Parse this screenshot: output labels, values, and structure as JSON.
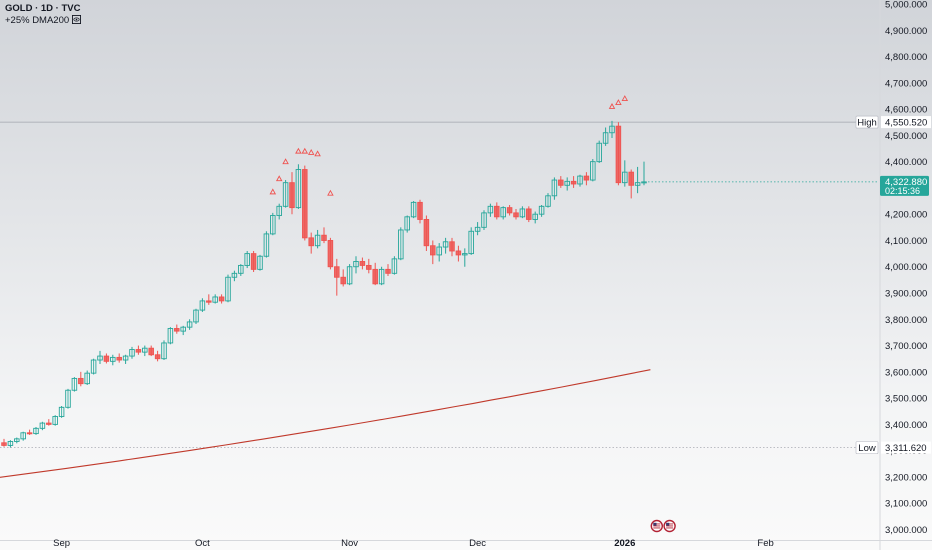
{
  "legend": {
    "title": "GOLD · 1D · TVC",
    "indicator": "+25% DMA200 ",
    "indicator_icon": "eye-icon"
  },
  "colors": {
    "up": "#26a69a",
    "down": "#ef5350",
    "ma_line": "#c0392b",
    "price_tag": "#26a69a",
    "reference_line": "#9598a1"
  },
  "chart_data": {
    "type": "candlestick",
    "title": "GOLD · 1D · TVC",
    "xlabel": "",
    "ylabel": "",
    "ylim": [
      2960,
      5000
    ],
    "y_ticks": [
      "5,000.000",
      "4,900.000",
      "4,800.000",
      "4,700.000",
      "4,600.000",
      "4,500.000",
      "4,400.000",
      "4,300.000",
      "4,200.000",
      "4,100.000",
      "4,000.000",
      "3,900.000",
      "3,800.000",
      "3,700.000",
      "3,600.000",
      "3,500.000",
      "3,400.000",
      "3,300.000",
      "3,200.000",
      "3,100.000",
      "3,000.000"
    ],
    "x_labels": [
      {
        "label": "Sep",
        "date": "2025-09-01",
        "bold": false
      },
      {
        "label": "Oct",
        "date": "2025-10-01",
        "bold": false
      },
      {
        "label": "Nov",
        "date": "2025-11-03",
        "bold": false
      },
      {
        "label": "Dec",
        "date": "2025-12-01",
        "bold": false
      },
      {
        "label": "2026",
        "date": "2026-01-01",
        "bold": true
      },
      {
        "label": "Feb",
        "date": "2026-02-02",
        "bold": false
      }
    ],
    "first_date": "2025-08-19",
    "candles": [
      [
        3330,
        3345,
        3315,
        3320
      ],
      [
        3320,
        3340,
        3312,
        3335
      ],
      [
        3335,
        3350,
        3328,
        3345
      ],
      [
        3345,
        3372,
        3338,
        3368
      ],
      [
        3368,
        3380,
        3360,
        3365
      ],
      [
        3365,
        3390,
        3360,
        3385
      ],
      [
        3385,
        3410,
        3378,
        3405
      ],
      [
        3405,
        3420,
        3395,
        3400
      ],
      [
        3400,
        3435,
        3395,
        3430
      ],
      [
        3430,
        3470,
        3425,
        3465
      ],
      [
        3465,
        3535,
        3460,
        3530
      ],
      [
        3530,
        3580,
        3525,
        3575
      ],
      [
        3575,
        3600,
        3545,
        3555
      ],
      [
        3555,
        3605,
        3550,
        3595
      ],
      [
        3595,
        3650,
        3590,
        3645
      ],
      [
        3645,
        3680,
        3630,
        3660
      ],
      [
        3660,
        3670,
        3632,
        3640
      ],
      [
        3640,
        3665,
        3625,
        3655
      ],
      [
        3655,
        3670,
        3635,
        3645
      ],
      [
        3645,
        3665,
        3630,
        3660
      ],
      [
        3660,
        3695,
        3650,
        3685
      ],
      [
        3685,
        3700,
        3665,
        3675
      ],
      [
        3675,
        3700,
        3660,
        3690
      ],
      [
        3690,
        3700,
        3660,
        3665
      ],
      [
        3665,
        3680,
        3640,
        3650
      ],
      [
        3650,
        3720,
        3645,
        3710
      ],
      [
        3710,
        3770,
        3705,
        3765
      ],
      [
        3765,
        3780,
        3745,
        3755
      ],
      [
        3755,
        3775,
        3740,
        3770
      ],
      [
        3770,
        3800,
        3760,
        3790
      ],
      [
        3790,
        3840,
        3782,
        3835
      ],
      [
        3835,
        3880,
        3828,
        3870
      ],
      [
        3870,
        3895,
        3855,
        3865
      ],
      [
        3865,
        3895,
        3860,
        3885
      ],
      [
        3885,
        3895,
        3860,
        3870
      ],
      [
        3870,
        3970,
        3865,
        3960
      ],
      [
        3960,
        3985,
        3945,
        3975
      ],
      [
        3975,
        4010,
        3965,
        4005
      ],
      [
        4005,
        4060,
        3995,
        4050
      ],
      [
        4050,
        4060,
        3980,
        3990
      ],
      [
        3990,
        4045,
        3985,
        4040
      ],
      [
        4040,
        4135,
        4035,
        4125
      ],
      [
        4125,
        4205,
        4120,
        4195
      ],
      [
        4195,
        4240,
        4180,
        4230
      ],
      [
        4230,
        4330,
        4225,
        4320
      ],
      [
        4320,
        4360,
        4200,
        4225
      ],
      [
        4225,
        4390,
        4220,
        4370
      ],
      [
        4370,
        4385,
        4100,
        4110
      ],
      [
        4110,
        4130,
        4050,
        4080
      ],
      [
        4080,
        4140,
        4070,
        4120
      ],
      [
        4120,
        4150,
        4090,
        4100
      ],
      [
        4100,
        4110,
        3990,
        4000
      ],
      [
        4000,
        4030,
        3890,
        3960
      ],
      [
        3960,
        3990,
        3925,
        3935
      ],
      [
        3935,
        4010,
        3930,
        4000
      ],
      [
        4000,
        4040,
        3975,
        4020
      ],
      [
        4020,
        4035,
        3990,
        4005
      ],
      [
        4005,
        4030,
        3975,
        3990
      ],
      [
        3990,
        4015,
        3930,
        3935
      ],
      [
        3935,
        4000,
        3930,
        3990
      ],
      [
        3990,
        4010,
        3965,
        3975
      ],
      [
        3975,
        4040,
        3970,
        4030
      ],
      [
        4030,
        4150,
        4025,
        4140
      ],
      [
        4140,
        4195,
        4130,
        4190
      ],
      [
        4190,
        4250,
        4185,
        4245
      ],
      [
        4245,
        4255,
        4165,
        4180
      ],
      [
        4180,
        4195,
        4060,
        4080
      ],
      [
        4080,
        4100,
        4010,
        4045
      ],
      [
        4045,
        4090,
        4020,
        4075
      ],
      [
        4075,
        4110,
        4050,
        4095
      ],
      [
        4095,
        4110,
        4040,
        4060
      ],
      [
        4060,
        4080,
        4020,
        4045
      ],
      [
        4045,
        4070,
        4000,
        4050
      ],
      [
        4050,
        4150,
        4045,
        4135
      ],
      [
        4135,
        4170,
        4120,
        4150
      ],
      [
        4150,
        4215,
        4140,
        4205
      ],
      [
        4205,
        4240,
        4190,
        4230
      ],
      [
        4230,
        4245,
        4180,
        4190
      ],
      [
        4190,
        4230,
        4180,
        4225
      ],
      [
        4225,
        4235,
        4195,
        4205
      ],
      [
        4205,
        4220,
        4180,
        4190
      ],
      [
        4190,
        4230,
        4185,
        4220
      ],
      [
        4220,
        4230,
        4170,
        4180
      ],
      [
        4180,
        4210,
        4165,
        4200
      ],
      [
        4200,
        4235,
        4190,
        4230
      ],
      [
        4230,
        4280,
        4225,
        4270
      ],
      [
        4270,
        4340,
        4255,
        4330
      ],
      [
        4330,
        4345,
        4300,
        4310
      ],
      [
        4310,
        4340,
        4290,
        4325
      ],
      [
        4325,
        4345,
        4300,
        4315
      ],
      [
        4315,
        4350,
        4305,
        4345
      ],
      [
        4345,
        4360,
        4310,
        4330
      ],
      [
        4330,
        4410,
        4325,
        4400
      ],
      [
        4400,
        4480,
        4395,
        4470
      ],
      [
        4470,
        4530,
        4460,
        4510
      ],
      [
        4510,
        4555,
        4490,
        4535
      ],
      [
        4535,
        4550,
        4310,
        4320
      ],
      [
        4320,
        4405,
        4305,
        4360
      ],
      [
        4360,
        4370,
        4260,
        4310
      ],
      [
        4310,
        4380,
        4280,
        4320
      ],
      [
        4320,
        4400,
        4310,
        4323
      ]
    ],
    "markers": [
      {
        "index": 42,
        "price": 4285
      },
      {
        "index": 43,
        "price": 4335
      },
      {
        "index": 44,
        "price": 4400
      },
      {
        "index": 46,
        "price": 4440
      },
      {
        "index": 47,
        "price": 4440
      },
      {
        "index": 48,
        "price": 4435
      },
      {
        "index": 49,
        "price": 4430
      },
      {
        "index": 51,
        "price": 4280
      },
      {
        "index": 95,
        "price": 4610
      },
      {
        "index": 96,
        "price": 4625
      },
      {
        "index": 97,
        "price": 4640
      }
    ],
    "ma200": {
      "name": "+25% DMA200",
      "start_index": -65,
      "end_index": 101,
      "start_value": 3025,
      "end_value": 3608
    },
    "high_line": {
      "label": "High",
      "value": 4550.52,
      "text": "4,550.520"
    },
    "low_line": {
      "label": "Low",
      "value": 3311.62,
      "text": "3,311.620"
    },
    "last_price": {
      "text": "4,322.880",
      "value": 4322.88,
      "countdown": "02:15:36"
    },
    "event_icons": [
      {
        "index": 102,
        "icon": "us-flag-icon"
      },
      {
        "index": 104,
        "icon": "us-flag-icon"
      }
    ]
  }
}
